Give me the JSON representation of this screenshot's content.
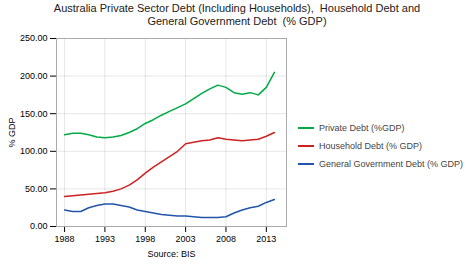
{
  "chart_data": {
    "type": "line",
    "title": "Australia Private Sector Debt (Including Households),  Household Debt and\nGeneral Government Debt  (% GDP)",
    "xlabel": "Source: BIS",
    "ylabel": "% GDP",
    "x": [
      1988,
      1989,
      1990,
      1991,
      1992,
      1993,
      1994,
      1995,
      1996,
      1997,
      1998,
      1999,
      2000,
      2001,
      2002,
      2003,
      2004,
      2005,
      2006,
      2007,
      2008,
      2009,
      2010,
      2011,
      2012,
      2013,
      2014
    ],
    "series": [
      {
        "name": "Private Debt (%GDP)",
        "color": "#00aa44",
        "values": [
          122,
          124,
          124,
          122,
          119,
          118,
          119,
          121,
          125,
          130,
          137,
          142,
          148,
          153,
          158,
          163,
          170,
          177,
          183,
          188,
          185,
          178,
          176,
          178,
          175,
          185,
          205
        ]
      },
      {
        "name": "Household Debt (% GDP)",
        "color": "#cc2222",
        "values": [
          40,
          41,
          42,
          43,
          44,
          45,
          47,
          50,
          55,
          62,
          71,
          79,
          86,
          93,
          100,
          110,
          112,
          114,
          115,
          118,
          116,
          115,
          114,
          115,
          116,
          120,
          125
        ]
      },
      {
        "name": "General Government Debt (% GDP)",
        "color": "#2255aa",
        "values": [
          22,
          20,
          20,
          25,
          28,
          30,
          30,
          28,
          26,
          22,
          20,
          18,
          16,
          15,
          14,
          14,
          13,
          12,
          12,
          12,
          13,
          18,
          22,
          25,
          27,
          32,
          36
        ]
      }
    ],
    "xlim": [
      1987,
      2015.5
    ],
    "xticks": [
      1988,
      1993,
      1998,
      2003,
      2008,
      2013
    ],
    "ylim": [
      0,
      250
    ],
    "yticks": [
      {
        "value": 0,
        "label": "0.00"
      },
      {
        "value": 50,
        "label": "50.00"
      },
      {
        "value": 100,
        "label": "100.00"
      },
      {
        "value": 150,
        "label": "150.00"
      },
      {
        "value": 200,
        "label": "200.00"
      },
      {
        "value": 250,
        "label": "250.00"
      }
    ],
    "grid": true,
    "legend": "right"
  }
}
